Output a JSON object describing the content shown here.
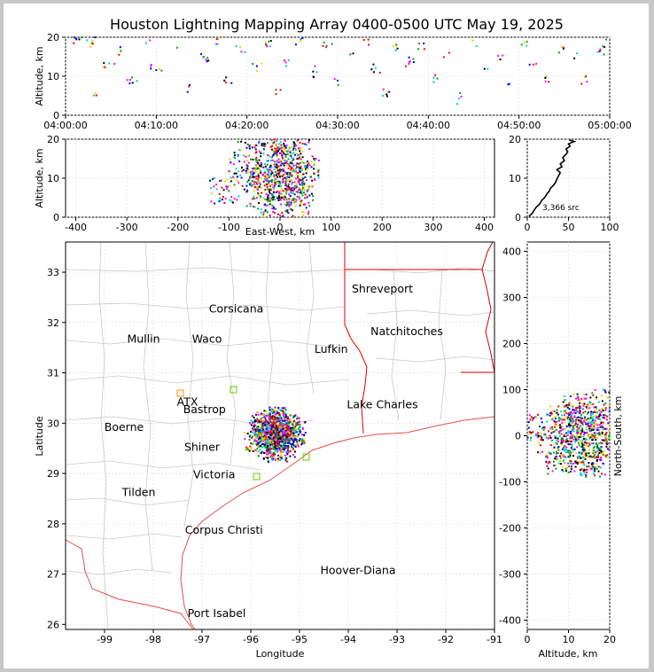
{
  "title": "Houston Lightning Mapping Array 0400-0500 UTC May 19, 2025",
  "colors": {
    "axis": "#000000",
    "grid": "#e6e6e6",
    "county": "#c9c9c9",
    "state": "#dd0000",
    "coast": "#e05050",
    "network_orange": "#ff8c00",
    "network_green": "#66cc00",
    "label_blue": "#0000ff"
  },
  "chart_data": [
    {
      "id": "time_altitude",
      "type": "scatter",
      "ylabel": "Altitude, km",
      "x_tick_labels": [
        "04:00:00",
        "04:10:00",
        "04:20:00",
        "04:30:00",
        "04:40:00",
        "04:50:00",
        "05:00:00"
      ],
      "xlim_minutes": [
        0,
        60
      ],
      "ylim": [
        0,
        20
      ],
      "y_ticks": [
        0,
        10,
        20
      ],
      "points_xy": [
        [
          1.2,
          19.6
        ],
        [
          2.9,
          18.5
        ],
        [
          3.4,
          5.1
        ],
        [
          4.8,
          13.3
        ],
        [
          6.1,
          16.7
        ],
        [
          7.4,
          8.3
        ],
        [
          9.3,
          19.2
        ],
        [
          10.0,
          11.6
        ],
        [
          12.3,
          17.3
        ],
        [
          13.6,
          7.4
        ],
        [
          15.2,
          14.8
        ],
        [
          16.8,
          19.5
        ],
        [
          17.7,
          9.7
        ],
        [
          19.4,
          16.3
        ],
        [
          21.1,
          12.6
        ],
        [
          22.4,
          18.9
        ],
        [
          23.7,
          6.5
        ],
        [
          24.6,
          14.1
        ],
        [
          25.9,
          19.0
        ],
        [
          27.3,
          11.2
        ],
        [
          28.8,
          17.8
        ],
        [
          30.0,
          8.9
        ],
        [
          31.4,
          15.6
        ],
        [
          32.9,
          19.3
        ],
        [
          34.2,
          12.1
        ],
        [
          35.5,
          6.0
        ],
        [
          36.6,
          17.1
        ],
        [
          38.0,
          13.8
        ],
        [
          39.5,
          18.4
        ],
        [
          41.0,
          9.4
        ],
        [
          42.3,
          16.0
        ],
        [
          43.4,
          4.3
        ],
        [
          44.9,
          19.1
        ],
        [
          46.2,
          11.9
        ],
        [
          47.7,
          15.2
        ],
        [
          48.8,
          7.9
        ],
        [
          50.3,
          18.1
        ],
        [
          51.6,
          13.0
        ],
        [
          53.0,
          9.9
        ],
        [
          54.7,
          17.5
        ],
        [
          56.1,
          14.6
        ],
        [
          57.5,
          8.6
        ],
        [
          58.9,
          16.4
        ],
        [
          59.6,
          19.4
        ]
      ]
    },
    {
      "id": "ew_altitude",
      "type": "scatter",
      "xlabel": "East-West, km",
      "ylabel": "Altitude, km",
      "xlim": [
        -420,
        420
      ],
      "x_ticks": [
        -400,
        -300,
        -200,
        -100,
        0,
        100,
        200,
        300,
        400
      ],
      "ylim": [
        0,
        20
      ],
      "y_ticks": [
        0,
        10,
        20
      ],
      "points_xy": [
        [
          -60,
          18.2
        ],
        [
          -45,
          12.4
        ],
        [
          -30,
          8.1
        ],
        [
          -20,
          15.6
        ],
        [
          -12,
          19.1
        ],
        [
          -5,
          10.3
        ],
        [
          0,
          4.6
        ],
        [
          6,
          13.7
        ],
        [
          12,
          17.8
        ],
        [
          18,
          7.2
        ],
        [
          25,
          11.9
        ],
        [
          32,
          16.3
        ],
        [
          40,
          9.5
        ],
        [
          -70,
          14.2
        ],
        [
          -38,
          5.3
        ],
        [
          -8,
          2.1
        ],
        [
          10,
          19.6
        ],
        [
          28,
          3.8
        ],
        [
          48,
          13.1
        ],
        [
          -110,
          7.0
        ],
        [
          -25,
          11.0
        ],
        [
          15,
          10.4
        ],
        [
          -50,
          9.0
        ],
        [
          35,
          6.4
        ]
      ]
    },
    {
      "id": "altitude_histogram",
      "type": "line",
      "annotation": "3,366 src",
      "xlim": [
        0,
        100
      ],
      "x_ticks": [
        0,
        50,
        100
      ],
      "ylim": [
        0,
        20
      ],
      "y_ticks": [
        0,
        10,
        20
      ],
      "points_xy": [
        [
          2,
          0.2
        ],
        [
          6,
          1.0
        ],
        [
          9,
          2.0
        ],
        [
          11,
          2.6
        ],
        [
          15,
          3.4
        ],
        [
          18,
          4.4
        ],
        [
          21,
          5.0
        ],
        [
          24,
          6.0
        ],
        [
          27,
          6.8
        ],
        [
          28,
          7.4
        ],
        [
          31,
          8.0
        ],
        [
          34,
          8.8
        ],
        [
          36,
          9.8
        ],
        [
          38,
          10.6
        ],
        [
          40,
          11.4
        ],
        [
          36,
          12.2
        ],
        [
          42,
          12.9
        ],
        [
          40,
          13.7
        ],
        [
          45,
          14.5
        ],
        [
          43,
          15.3
        ],
        [
          47,
          16.1
        ],
        [
          49,
          16.8
        ],
        [
          47,
          17.5
        ],
        [
          52,
          18.2
        ],
        [
          50,
          18.8
        ],
        [
          57,
          19.4
        ],
        [
          51,
          19.8
        ]
      ]
    },
    {
      "id": "plan_view",
      "type": "scatter",
      "xlabel": "Longitude",
      "ylabel": "Latitude",
      "xlim": [
        -99.8,
        -91.0
      ],
      "x_ticks": [
        -99,
        -98,
        -97,
        -96,
        -95,
        -94,
        -93,
        -92,
        -91
      ],
      "ylim": [
        25.9,
        33.6
      ],
      "y_ticks": [
        26,
        27,
        28,
        29,
        30,
        31,
        32,
        33
      ],
      "points_xy": [
        [
          -95.6,
          29.95
        ],
        [
          -95.45,
          29.8
        ],
        [
          -95.7,
          29.7
        ],
        [
          -95.35,
          29.9
        ],
        [
          -95.55,
          29.6
        ],
        [
          -95.25,
          29.75
        ],
        [
          -95.8,
          29.85
        ],
        [
          -95.4,
          30.05
        ],
        [
          -95.65,
          29.5
        ],
        [
          -95.3,
          29.55
        ],
        [
          -95.5,
          30.1
        ],
        [
          -95.2,
          29.95
        ],
        [
          -95.75,
          30.0
        ],
        [
          -95.45,
          29.45
        ],
        [
          -95.9,
          29.65
        ],
        [
          -95.1,
          29.8
        ],
        [
          -95.55,
          29.75
        ],
        [
          -95.35,
          29.65
        ]
      ]
    },
    {
      "id": "altitude_ns",
      "type": "scatter",
      "xlabel": "Altitude, km",
      "ylabel": "North-South, km",
      "xlim": [
        0,
        20
      ],
      "x_ticks": [
        0,
        10,
        20
      ],
      "ylim": [
        -420,
        420
      ],
      "y_ticks": [
        -400,
        -300,
        -200,
        -100,
        0,
        100,
        200,
        300,
        400
      ],
      "points_xy": [
        [
          3,
          20
        ],
        [
          6,
          -10
        ],
        [
          9,
          35
        ],
        [
          11,
          -30
        ],
        [
          13,
          5
        ],
        [
          14,
          40
        ],
        [
          15,
          -45
        ],
        [
          16,
          15
        ],
        [
          17,
          -20
        ],
        [
          18,
          30
        ],
        [
          19,
          -5
        ],
        [
          8,
          -55
        ],
        [
          12,
          60
        ],
        [
          10,
          10
        ],
        [
          16,
          -60
        ],
        [
          19,
          70
        ]
      ]
    }
  ],
  "map_labels": [
    {
      "name": "Shreveport",
      "lon": -93.3,
      "lat": 32.6,
      "color": "#000000"
    },
    {
      "name": "Corsicana",
      "lon": -96.3,
      "lat": 32.2,
      "color": "#000000"
    },
    {
      "name": "Mullin",
      "lon": -98.2,
      "lat": 31.6,
      "color": "#ff8c00"
    },
    {
      "name": "Waco",
      "lon": -96.9,
      "lat": 31.6,
      "color": "#000000"
    },
    {
      "name": "Natchitoches",
      "lon": -92.8,
      "lat": 31.75,
      "color": "#000000"
    },
    {
      "name": "Lufkin",
      "lon": -94.35,
      "lat": 31.4,
      "color": "#000000"
    },
    {
      "name": "ATX",
      "lon": -97.3,
      "lat": 30.35,
      "color": "#ff8c00"
    },
    {
      "name": "Bastrop",
      "lon": -96.95,
      "lat": 30.2,
      "color": "#000000"
    },
    {
      "name": "Lake Charles",
      "lon": -93.3,
      "lat": 30.3,
      "color": "#000000"
    },
    {
      "name": "Boerne",
      "lon": -98.6,
      "lat": 29.85,
      "color": "#000000"
    },
    {
      "name": "Shiner",
      "lon": -97.0,
      "lat": 29.45,
      "color": "#000000"
    },
    {
      "name": "Victoria",
      "lon": -96.75,
      "lat": 28.9,
      "color": "#000000"
    },
    {
      "name": "Tilden",
      "lon": -98.3,
      "lat": 28.55,
      "color": "#000000"
    },
    {
      "name": "Corpus Christi",
      "lon": -96.55,
      "lat": 27.8,
      "color": "#000000"
    },
    {
      "name": "Hoover-Diana",
      "lon": -93.8,
      "lat": 27.0,
      "color": "#0000ff"
    },
    {
      "name": "Port Isabel",
      "lon": -96.7,
      "lat": 26.15,
      "color": "#000000"
    }
  ]
}
